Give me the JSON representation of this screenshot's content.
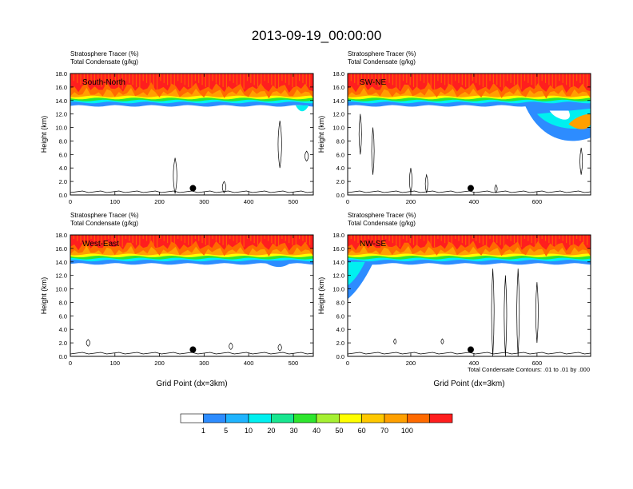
{
  "title": "2013-09-19_00:00:00",
  "colorbar": {
    "colors": [
      "#ffffff",
      "#2d8cff",
      "#1fb4ff",
      "#00f0f0",
      "#18e690",
      "#2ee62e",
      "#a5f032",
      "#ffff00",
      "#ffc800",
      "#ffa000",
      "#ff6a00",
      "#ff1e1e"
    ],
    "labels": [
      "1",
      "5",
      "10",
      "20",
      "30",
      "40",
      "50",
      "60",
      "70",
      "100"
    ]
  },
  "contour_note": "Total Condensate Contours: .01 to .01 by .000",
  "chart_data": [
    {
      "type": "heatmap",
      "title": "South-North",
      "subtitle_line1": "Stratosphere Tracer   (%)",
      "subtitle_line2": "Total Condensate   (g/kg)",
      "ylabel": "Height (km)",
      "xlabel": "",
      "xlim": [
        0,
        545
      ],
      "ylim": [
        0,
        18
      ],
      "xticks": [
        "0",
        "100",
        "200",
        "300",
        "400",
        "500"
      ],
      "yticks": [
        "0.0",
        "2.0",
        "4.0",
        "6.0",
        "8.0",
        "10.0",
        "12.0",
        "14.0",
        "16.0",
        "18.0"
      ],
      "layer_base_km": 13.5,
      "marker_x": 275,
      "marker_y_km": 1.0
    },
    {
      "type": "heatmap",
      "title": "SW-NE",
      "subtitle_line1": "Stratosphere Tracer   (%)",
      "subtitle_line2": "Total Condensate   (g/kg)",
      "ylabel": "Height (km)",
      "xlabel": "",
      "xlim": [
        0,
        770
      ],
      "ylim": [
        0,
        18
      ],
      "xticks": [
        "0",
        "200",
        "400",
        "600"
      ],
      "yticks": [
        "0.0",
        "2.0",
        "4.0",
        "6.0",
        "8.0",
        "10.0",
        "12.0",
        "14.0",
        "16.0",
        "18.0"
      ],
      "layer_base_km": 13.5,
      "marker_x": 390,
      "marker_y_km": 1.0
    },
    {
      "type": "heatmap",
      "title": "West-East",
      "subtitle_line1": "Stratosphere Tracer   (%)",
      "subtitle_line2": "Total Condensate   (g/kg)",
      "ylabel": "Height (km)",
      "xlabel": "Grid Point (dx=3km)",
      "xlim": [
        0,
        545
      ],
      "ylim": [
        0,
        18
      ],
      "xticks": [
        "0",
        "100",
        "200",
        "300",
        "400",
        "500"
      ],
      "yticks": [
        "0.0",
        "2.0",
        "4.0",
        "6.0",
        "8.0",
        "10.0",
        "12.0",
        "14.0",
        "16.0",
        "18.0"
      ],
      "layer_base_km": 14.0,
      "marker_x": 275,
      "marker_y_km": 1.0
    },
    {
      "type": "heatmap",
      "title": "NW-SE",
      "subtitle_line1": "Stratosphere Tracer   (%)",
      "subtitle_line2": "Total Condensate   (g/kg)",
      "ylabel": "Height (km)",
      "xlabel": "Grid Point (dx=3km)",
      "xlim": [
        0,
        770
      ],
      "ylim": [
        0,
        18
      ],
      "xticks": [
        "0",
        "200",
        "400",
        "600"
      ],
      "yticks": [
        "0.0",
        "2.0",
        "4.0",
        "6.0",
        "8.0",
        "10.0",
        "12.0",
        "14.0",
        "16.0",
        "18.0"
      ],
      "layer_base_km": 14.0,
      "marker_x": 390,
      "marker_y_km": 1.0
    }
  ]
}
